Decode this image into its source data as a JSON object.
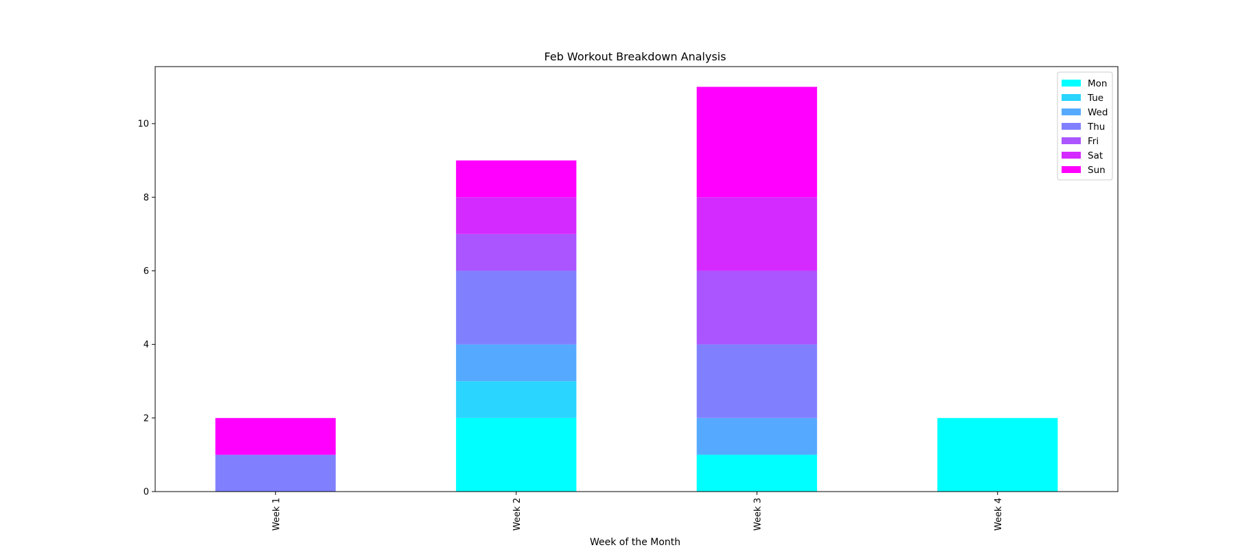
{
  "chart_data": {
    "type": "bar",
    "stacked": true,
    "title": "Feb Workout Breakdown Analysis",
    "xlabel": "Week of the Month",
    "ylabel": "",
    "categories": [
      "Week 1",
      "Week 2",
      "Week 3",
      "Week 4"
    ],
    "yticks": [
      0,
      2,
      4,
      6,
      8,
      10
    ],
    "ylim": [
      0,
      11.55
    ],
    "legend_position": "top-right",
    "grid": false,
    "series": [
      {
        "name": "Mon",
        "color": "#00ffff",
        "values": [
          0,
          2,
          1,
          2
        ]
      },
      {
        "name": "Tue",
        "color": "#2ad5ff",
        "values": [
          0,
          1,
          0,
          0
        ]
      },
      {
        "name": "Wed",
        "color": "#55aaff",
        "values": [
          0,
          1,
          1,
          0
        ]
      },
      {
        "name": "Thu",
        "color": "#8080ff",
        "values": [
          1,
          2,
          2,
          0
        ]
      },
      {
        "name": "Fri",
        "color": "#aa55ff",
        "values": [
          0,
          1,
          2,
          0
        ]
      },
      {
        "name": "Sat",
        "color": "#d52aff",
        "values": [
          0,
          1,
          2,
          0
        ]
      },
      {
        "name": "Sun",
        "color": "#ff00ff",
        "values": [
          1,
          1,
          3,
          0
        ]
      }
    ]
  }
}
